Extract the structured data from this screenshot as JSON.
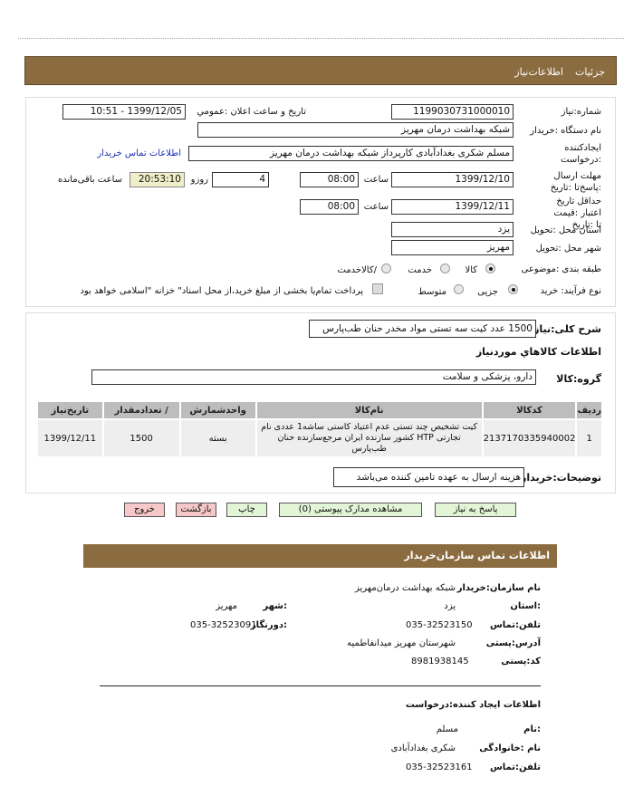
{
  "tabs": {
    "details": "جزئیات",
    "need_info": "اطلاعات‌نیاز"
  },
  "form": {
    "need_number_label": "شماره:نیاز",
    "need_number": "1199030731000010",
    "announce_label": "تاریخ و ساعت اعلان :عمومي",
    "announce_value": "1399/12/05 - 10:51",
    "buyer_org_label": "نام دستگاه :خریدار",
    "buyer_org": "شبکه بهداشت درمان مهریز",
    "creator_label": "ایجادکننده :درخواست",
    "creator": "مسلم شکری بغدادآبادی کارپرداز شبکه بهداشت درمان مهریز",
    "contact_link": "اطلاعات تماس خریدار",
    "deadline_label": "مهلت ارسال :پاسخ‌تا :تاریخ",
    "deadline_date": "1399/12/10",
    "time_label": "ساعت",
    "deadline_time": "08:00",
    "days_value": "4",
    "days_label": "روزو",
    "remaining_time": "20:53:10",
    "remaining_label": "ساعت باقی‌مانده",
    "validity_label": "حداقل تاریخ اعتبار :قیمت تا :تاریخ",
    "validity_date": "1399/12/11",
    "validity_time": "08:00",
    "province_label": "استان محل :تحویل",
    "province": "یزد",
    "city_label": "شهر محل :تحویل",
    "city": "مهریز",
    "category_label": "طبقه بندی :موضوعی",
    "category_options": [
      "کالا",
      "خدمت",
      "/کالاخدمت"
    ],
    "category_selected": "کالا",
    "process_label": "نوع فرآیند: خرید",
    "process_options": [
      "جزیی",
      "متوسط"
    ],
    "process_selected": "جزیی",
    "payment_note": "پرداخت تمام‌یا بخشی از مبلغ خرید،از محل اسناد\" خزانه \"اسلامی خواهد بود",
    "payment_checked": false
  },
  "items": {
    "summary_label": "شرح کلی:نیاز",
    "summary": "1500 عدد کیت سه تستی مواد مخدر حنان طب‌پارس",
    "heading": "اطلاعات کالاهاي موردنیاز",
    "group_label": "گروه:کالا",
    "group": "دارو، پزشکی و سلامت",
    "columns": [
      "ردیف",
      "کدکالا",
      "نام‌کالا",
      "واحدشمارش",
      "/ تعدادمقدار",
      "تاریخ‌نیاز"
    ],
    "rows": [
      {
        "row": "1",
        "code": "2137170335940002",
        "name": "کیت تشخیص چند تستی عدم اعتیاد کاستی ساشه1 عددی نام تجارتی HTP کشور سازنده ایران مرجع‌سازنده حنان طب‌پارس",
        "unit": "بسته",
        "qty": "1500",
        "date": "1399/12/11"
      }
    ],
    "buyer_notes_label": "توضیحات:خریدار",
    "buyer_notes": "هزینه ارسال به عهده تامین کننده می‌باشد"
  },
  "buttons": {
    "respond": "پاسخ به نیاز",
    "attachments": "مشاهده مدارک پیوستی (0)",
    "print": "چاپ",
    "back": "بازگشت",
    "exit": "خروج"
  },
  "contact": {
    "title": "اطلاعات تماس سازمان‌خریدار",
    "org_label": "نام سازمان:خریدار",
    "org": "شبکه بهداشت درمان‌مهریز",
    "province_label": ":استان",
    "province": "یزد",
    "city_label": ":شهر",
    "city": "مهریز",
    "phone_label": "تلفن:تماس",
    "phone": "035-32523150",
    "fax_label": ":دورنگار",
    "fax": "035-32523091",
    "address_label": "آدرس:پستی",
    "address": "شهرستان مهریز میدانفاطمیه",
    "postal_label": "کد:پستی",
    "postal": "8981938145",
    "creator_heading": "اطلاعات ایجاد کننده:درخواست",
    "name_label": ":نام",
    "name": "مسلم",
    "family_label": "نام :خانوادگی",
    "family": "شکری بغدادآبادی",
    "creator_phone_label": "تلفن:تماس",
    "creator_phone": "035-32523161"
  }
}
